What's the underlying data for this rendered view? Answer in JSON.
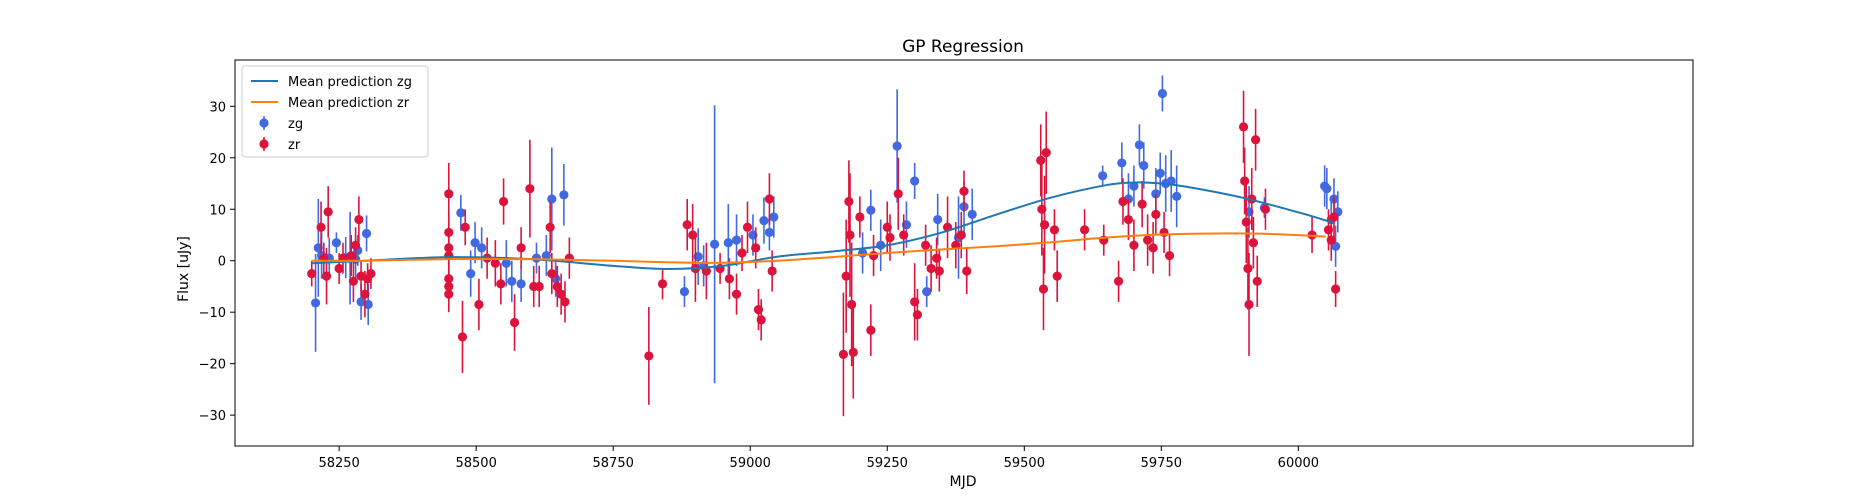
{
  "chart_data": {
    "type": "scatter",
    "title": "GP Regression",
    "xlabel": "MJD",
    "ylabel": "Flux [uJy]",
    "xlim": [
      58060,
      60720
    ],
    "ylim": [
      -36,
      39
    ],
    "xticks": [
      58250,
      58500,
      58750,
      59000,
      59250,
      59500,
      59750,
      60000
    ],
    "yticks": [
      -30,
      -20,
      -10,
      0,
      10,
      20,
      30
    ],
    "grid": false,
    "legend_position": "top-left",
    "legend": [
      "Mean prediction zg",
      "Mean prediction zr",
      "zg",
      "zr"
    ],
    "lines": [
      {
        "name": "Mean prediction zg",
        "color": "#1f77b4",
        "x": [
          58200,
          58300,
          58450,
          58600,
          58750,
          58850,
          58950,
          59050,
          59150,
          59250,
          59350,
          59450,
          59550,
          59650,
          59700,
          59750,
          59800,
          59900,
          60000,
          60060
        ],
        "y": [
          -0.5,
          0,
          0.7,
          0.3,
          -1.0,
          -1.6,
          -1.0,
          0.8,
          1.8,
          3.0,
          5.5,
          9.0,
          12.3,
          14.7,
          15.2,
          15.0,
          14.3,
          12.2,
          9.4,
          7.5
        ]
      },
      {
        "name": "Mean prediction zr",
        "color": "#ff7f0e",
        "x": [
          58200,
          58300,
          58450,
          58600,
          58750,
          58850,
          58950,
          59050,
          59150,
          59250,
          59350,
          59450,
          59550,
          59650,
          59750,
          59850,
          59950,
          60050
        ],
        "y": [
          0,
          0,
          0.3,
          0.3,
          0,
          -0.3,
          -0.4,
          0,
          0.7,
          1.5,
          2.2,
          2.8,
          3.6,
          4.5,
          5.1,
          5.3,
          5.2,
          4.7
        ]
      }
    ],
    "series": [
      {
        "name": "zg",
        "color": "#4169e1",
        "points": [
          [
            58207,
            -8.2,
            9.5
          ],
          [
            58212,
            2.5,
            9.5
          ],
          [
            58218,
            1.0,
            4.5
          ],
          [
            58232,
            0.5,
            4.0
          ],
          [
            58245,
            3.5,
            2.0
          ],
          [
            58262,
            0.6,
            4.0
          ],
          [
            58270,
            0.5,
            9.0
          ],
          [
            58280,
            0.3,
            4.0
          ],
          [
            58284,
            2.0,
            3.0
          ],
          [
            58290,
            -8.0,
            3.5
          ],
          [
            58300,
            5.3,
            3.5
          ],
          [
            58303,
            -8.5,
            4.0
          ],
          [
            58472,
            9.3,
            3.5
          ],
          [
            58490,
            -2.5,
            4.5
          ],
          [
            58498,
            3.5,
            4.0
          ],
          [
            58510,
            2.5,
            4.0
          ],
          [
            58555,
            -0.5,
            4.5
          ],
          [
            58565,
            -4.0,
            4.0
          ],
          [
            58582,
            -4.5,
            3.5
          ],
          [
            58610,
            0.5,
            3.0
          ],
          [
            58628,
            1.0,
            4.0
          ],
          [
            58638,
            12.0,
            10.0
          ],
          [
            58645,
            -3.5,
            3.5
          ],
          [
            58660,
            12.8,
            6.0
          ],
          [
            58880,
            -6.0,
            3.0
          ],
          [
            58905,
            0.8,
            5.5
          ],
          [
            58915,
            -1.0,
            4.0
          ],
          [
            58935,
            3.2,
            27.0
          ],
          [
            58960,
            3.5,
            7.5
          ],
          [
            58975,
            4.0,
            5.0
          ],
          [
            59005,
            5.0,
            4.0
          ],
          [
            59025,
            7.8,
            4.5
          ],
          [
            59035,
            5.5,
            3.5
          ],
          [
            59043,
            8.5,
            4.0
          ],
          [
            59205,
            1.5,
            4.0
          ],
          [
            59220,
            9.8,
            4.0
          ],
          [
            59238,
            3.0,
            5.0
          ],
          [
            59268,
            22.3,
            11.0
          ],
          [
            59285,
            7.0,
            4.5
          ],
          [
            59300,
            15.5,
            3.5
          ],
          [
            59322,
            -6.0,
            3.0
          ],
          [
            59342,
            8.0,
            5.0
          ],
          [
            59380,
            4.5,
            8.0
          ],
          [
            59390,
            10.5,
            5.0
          ],
          [
            59405,
            9.0,
            5.0
          ],
          [
            59643,
            16.5,
            2.0
          ],
          [
            59678,
            19.0,
            4.0
          ],
          [
            59690,
            12.0,
            5.0
          ],
          [
            59700,
            14.5,
            4.0
          ],
          [
            59710,
            22.5,
            4.0
          ],
          [
            59718,
            18.5,
            4.5
          ],
          [
            59740,
            13.0,
            5.0
          ],
          [
            59748,
            17.0,
            4.0
          ],
          [
            59752,
            32.5,
            3.5
          ],
          [
            59758,
            15.0,
            5.5
          ],
          [
            59768,
            15.5,
            6.0
          ],
          [
            59778,
            12.5,
            6.0
          ],
          [
            59910,
            9.5,
            5.0
          ],
          [
            59938,
            10.3,
            2.0
          ],
          [
            60048,
            14.5,
            4.0
          ],
          [
            60052,
            14.0,
            4.0
          ],
          [
            60060,
            8.0,
            4.0
          ],
          [
            60065,
            12.0,
            4.0
          ],
          [
            60068,
            2.8,
            4.0
          ],
          [
            60072,
            9.5,
            4.0
          ]
        ]
      },
      {
        "name": "zr",
        "color": "#dc143c",
        "points": [
          [
            58200,
            -2.5,
            2.5
          ],
          [
            58217,
            6.5,
            5.0
          ],
          [
            58222,
            0.5,
            3.0
          ],
          [
            58227,
            -3.0,
            5.5
          ],
          [
            58230,
            9.5,
            5.0
          ],
          [
            58250,
            -1.5,
            3.0
          ],
          [
            58257,
            0.5,
            3.0
          ],
          [
            58272,
            1.0,
            4.0
          ],
          [
            58276,
            -4.0,
            4.0
          ],
          [
            58280,
            3.0,
            3.5
          ],
          [
            58286,
            8.0,
            4.5
          ],
          [
            58290,
            -3.0,
            3.0
          ],
          [
            58297,
            -6.5,
            4.5
          ],
          [
            58302,
            -3.5,
            3.0
          ],
          [
            58308,
            -2.5,
            3.0
          ],
          [
            58450,
            13.0,
            6.0
          ],
          [
            58450,
            5.5,
            4.0
          ],
          [
            58450,
            1.0,
            4.0
          ],
          [
            58450,
            -3.5,
            3.5
          ],
          [
            58450,
            -6.5,
            3.5
          ],
          [
            58450,
            -5.0,
            4.0
          ],
          [
            58450,
            2.5,
            4.0
          ],
          [
            58475,
            -14.8,
            7.0
          ],
          [
            58480,
            6.5,
            3.5
          ],
          [
            58505,
            -8.5,
            5.0
          ],
          [
            58520,
            0.5,
            4.0
          ],
          [
            58535,
            -0.5,
            4.5
          ],
          [
            58545,
            -4.5,
            4.0
          ],
          [
            58550,
            11.5,
            4.5
          ],
          [
            58570,
            -12.0,
            5.5
          ],
          [
            58582,
            2.5,
            4.0
          ],
          [
            58598,
            14.0,
            9.5
          ],
          [
            58605,
            -5.0,
            4.0
          ],
          [
            58615,
            -5.0,
            4.0
          ],
          [
            58635,
            6.5,
            5.0
          ],
          [
            58638,
            -2.5,
            4.0
          ],
          [
            58648,
            -5.0,
            4.0
          ],
          [
            58655,
            -6.5,
            4.0
          ],
          [
            58662,
            -8.0,
            4.0
          ],
          [
            58670,
            0.5,
            4.0
          ],
          [
            58815,
            -18.5,
            9.5
          ],
          [
            58840,
            -4.5,
            3.0
          ],
          [
            58885,
            7.0,
            5.0
          ],
          [
            58895,
            5.0,
            6.0
          ],
          [
            58900,
            -1.5,
            6.5
          ],
          [
            58920,
            -2.0,
            5.5
          ],
          [
            58945,
            -1.5,
            3.0
          ],
          [
            58962,
            -3.5,
            4.0
          ],
          [
            58975,
            -6.5,
            4.0
          ],
          [
            58985,
            1.5,
            3.5
          ],
          [
            58995,
            6.5,
            5.0
          ],
          [
            59010,
            2.5,
            4.0
          ],
          [
            59015,
            -9.5,
            4.0
          ],
          [
            59020,
            -11.5,
            4.0
          ],
          [
            59035,
            12.0,
            5.0
          ],
          [
            59040,
            -2.0,
            4.0
          ],
          [
            59170,
            -18.2,
            12.0
          ],
          [
            59175,
            -3.0,
            11.0
          ],
          [
            59180,
            11.5,
            8.0
          ],
          [
            59182,
            5.0,
            12.0
          ],
          [
            59185,
            -8.5,
            12.0
          ],
          [
            59188,
            -17.8,
            9.0
          ],
          [
            59200,
            8.5,
            4.0
          ],
          [
            59220,
            -13.5,
            5.0
          ],
          [
            59225,
            1.0,
            4.0
          ],
          [
            59250,
            6.5,
            5.0
          ],
          [
            59255,
            4.5,
            4.5
          ],
          [
            59270,
            13.0,
            7.0
          ],
          [
            59280,
            5.0,
            4.0
          ],
          [
            59300,
            -8.0,
            7.5
          ],
          [
            59305,
            -10.5,
            5.0
          ],
          [
            59320,
            3.0,
            4.0
          ],
          [
            59330,
            -1.5,
            4.5
          ],
          [
            59340,
            0.5,
            4.0
          ],
          [
            59345,
            -2.0,
            4.0
          ],
          [
            59360,
            6.5,
            6.0
          ],
          [
            59375,
            3.0,
            4.5
          ],
          [
            59385,
            5.0,
            4.5
          ],
          [
            59390,
            13.5,
            4.0
          ],
          [
            59395,
            -2.0,
            4.5
          ],
          [
            59530,
            19.5,
            7.0
          ],
          [
            59532,
            10.0,
            9.0
          ],
          [
            59535,
            -5.5,
            8.0
          ],
          [
            59537,
            7.0,
            9.5
          ],
          [
            59540,
            21.0,
            8.0
          ],
          [
            59555,
            6.0,
            4.0
          ],
          [
            59560,
            -3.0,
            5.0
          ],
          [
            59610,
            6.0,
            4.0
          ],
          [
            59645,
            4.0,
            3.0
          ],
          [
            59672,
            -4.0,
            4.0
          ],
          [
            59680,
            11.5,
            4.5
          ],
          [
            59690,
            8.0,
            4.0
          ],
          [
            59700,
            3.0,
            5.0
          ],
          [
            59715,
            11.0,
            4.5
          ],
          [
            59725,
            4.0,
            5.0
          ],
          [
            59735,
            2.5,
            5.0
          ],
          [
            59740,
            9.0,
            4.0
          ],
          [
            59755,
            5.5,
            4.0
          ],
          [
            59765,
            1.0,
            4.0
          ],
          [
            59900,
            26.0,
            7.0
          ],
          [
            59902,
            15.5,
            6.5
          ],
          [
            59905,
            7.5,
            8.0
          ],
          [
            59908,
            -1.5,
            8.0
          ],
          [
            59910,
            -8.5,
            10.0
          ],
          [
            59915,
            12.0,
            6.0
          ],
          [
            59918,
            3.5,
            5.0
          ],
          [
            59922,
            23.5,
            6.0
          ],
          [
            59925,
            -4.0,
            5.0
          ],
          [
            59940,
            10.0,
            4.0
          ],
          [
            60025,
            5.0,
            3.5
          ],
          [
            60055,
            6.0,
            4.0
          ],
          [
            60060,
            4.0,
            4.0
          ],
          [
            60065,
            8.5,
            4.0
          ],
          [
            60068,
            -5.5,
            3.5
          ]
        ]
      }
    ]
  }
}
